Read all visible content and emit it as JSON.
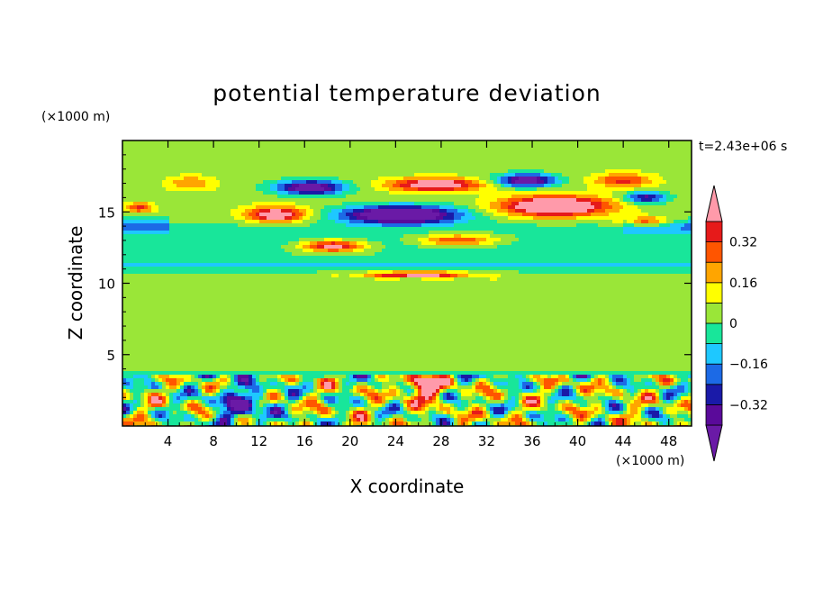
{
  "chart_data": {
    "type": "heatmap",
    "title": "potential temperature deviation",
    "xlabel": "X coordinate",
    "ylabel": "Z coordinate",
    "x_unit": "(×1000 m)",
    "y_unit": "(×1000 m)",
    "time_label": "t=2.43e+06 s",
    "xlim": [
      0,
      50
    ],
    "ylim": [
      0,
      20
    ],
    "x_ticks": [
      4,
      8,
      12,
      16,
      20,
      24,
      28,
      32,
      36,
      40,
      44,
      48
    ],
    "y_ticks": [
      5,
      10,
      15
    ],
    "colorbar": {
      "levels": [
        -0.4,
        -0.32,
        -0.24,
        -0.16,
        -0.08,
        0,
        0.08,
        0.16,
        0.24,
        0.32,
        0.4
      ],
      "labels": [
        "0.32",
        "0.16",
        "0",
        "−0.16",
        "−0.32"
      ],
      "label_values": [
        0.32,
        0.16,
        0,
        -0.16,
        -0.32
      ],
      "colors": [
        "#5a0a9a",
        "#1a1aa8",
        "#1c6ae6",
        "#1ec8ff",
        "#18e69a",
        "#9ae638",
        "#ffff00",
        "#ffa500",
        "#ff5500",
        "#e61a1a"
      ],
      "extend_low_color": "#6a1aa6",
      "extend_high_color": "#ff9aaa"
    },
    "grid": false,
    "legend": "right"
  }
}
